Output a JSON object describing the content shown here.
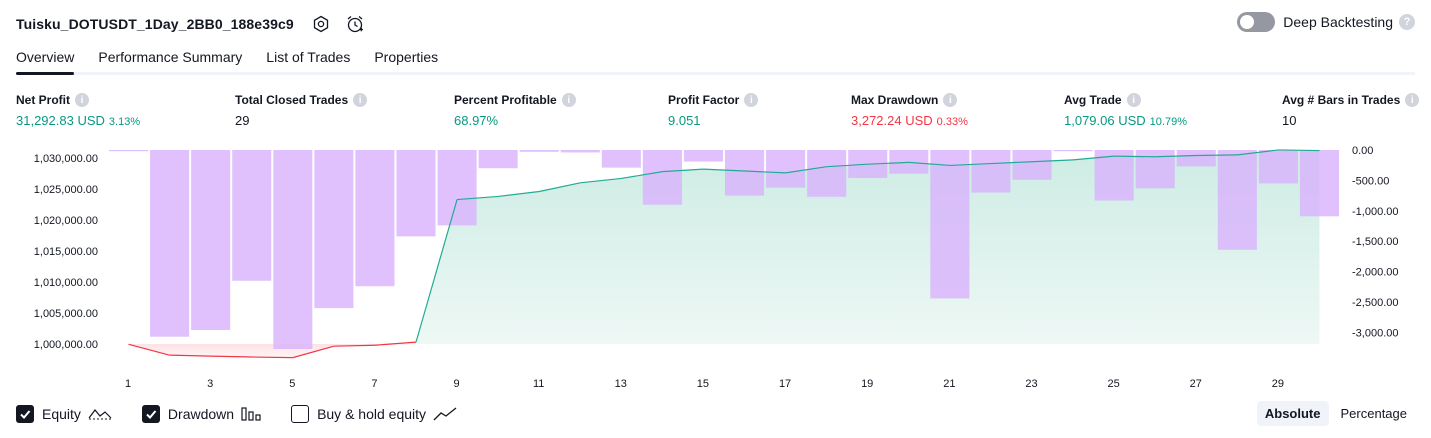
{
  "header": {
    "strategy_name": "Tuisku_DOTUSDT_1Day_2BB0_188e39c9",
    "deep_backtesting_label": "Deep Backtesting",
    "deep_backtesting_enabled": false
  },
  "tabs": [
    {
      "label": "Overview",
      "active": true
    },
    {
      "label": "Performance Summary",
      "active": false
    },
    {
      "label": "List of Trades",
      "active": false
    },
    {
      "label": "Properties",
      "active": false
    }
  ],
  "stats": {
    "net_profit": {
      "label": "Net Profit",
      "value": "31,292.83 USD",
      "pct": "3.13%"
    },
    "total_closed_trades": {
      "label": "Total Closed Trades",
      "value": "29"
    },
    "percent_profitable": {
      "label": "Percent Profitable",
      "value": "68.97%"
    },
    "profit_factor": {
      "label": "Profit Factor",
      "value": "9.051"
    },
    "max_drawdown": {
      "label": "Max Drawdown",
      "value": "3,272.24 USD",
      "pct": "0.33%"
    },
    "avg_trade": {
      "label": "Avg Trade",
      "value": "1,079.06 USD",
      "pct": "10.79%"
    },
    "avg_bars": {
      "label": "Avg # Bars in Trades",
      "value": "10"
    }
  },
  "legend": {
    "equity": {
      "label": "Equity",
      "checked": true
    },
    "drawdown": {
      "label": "Drawdown",
      "checked": true
    },
    "buy_hold": {
      "label": "Buy & hold equity",
      "checked": false
    }
  },
  "modes": {
    "absolute": "Absolute",
    "percentage": "Percentage",
    "active": "Absolute"
  },
  "colors": {
    "equity_line": "#22ab94",
    "equity_line_negative": "#f23645",
    "equity_fill": "#cdece4",
    "drawdown_bar": "#d9b3fc",
    "profit_green": "#089981",
    "loss_red": "#f23645"
  },
  "chart_data": {
    "type": "area",
    "x_ticks": [
      "1",
      "3",
      "5",
      "7",
      "9",
      "11",
      "13",
      "15",
      "17",
      "19",
      "21",
      "23",
      "25",
      "27",
      "29"
    ],
    "left_axis": {
      "ticks": [
        "1,030,000.00",
        "1,025,000.00",
        "1,020,000.00",
        "1,015,000.00",
        "1,010,000.00",
        "1,005,000.00",
        "1,000,000.00"
      ],
      "range": [
        999000,
        1031000
      ]
    },
    "right_axis": {
      "ticks": [
        "0.00",
        "-500.00",
        "-1,000.00",
        "-1,500.00",
        "-2,000.00",
        "-2,500.00",
        "-3,000.00"
      ],
      "range": [
        -3272,
        0
      ]
    },
    "series": [
      {
        "name": "Equity",
        "x": [
          1,
          2,
          3,
          4,
          5,
          6,
          7,
          8,
          9,
          10,
          11,
          12,
          13,
          14,
          15,
          16,
          17,
          18,
          19,
          20,
          21,
          22,
          23,
          24,
          25,
          26,
          27,
          28,
          29,
          30
        ],
        "values": [
          999950,
          998200,
          998050,
          997900,
          997800,
          999650,
          999800,
          1000300,
          1023300,
          1023800,
          1024600,
          1026000,
          1026700,
          1027800,
          1028200,
          1027900,
          1027600,
          1028600,
          1029000,
          1029300,
          1028800,
          1029100,
          1029400,
          1029700,
          1030300,
          1030200,
          1030400,
          1030500,
          1031300,
          1031200
        ]
      },
      {
        "name": "Drawdown",
        "x": [
          1,
          2,
          3,
          4,
          5,
          6,
          7,
          8,
          9,
          10,
          11,
          12,
          13,
          14,
          15,
          16,
          17,
          18,
          19,
          20,
          21,
          22,
          23,
          24,
          25,
          26,
          27,
          28,
          29,
          30
        ],
        "values": [
          -20,
          -3070,
          -2960,
          -2150,
          -3272,
          -2600,
          -2240,
          -1420,
          -1240,
          -300,
          -30,
          -40,
          -290,
          -900,
          -190,
          -750,
          -620,
          -770,
          -460,
          -390,
          -2440,
          -700,
          -490,
          -20,
          -830,
          -630,
          -270,
          -1640,
          -550,
          -1090
        ]
      }
    ]
  }
}
